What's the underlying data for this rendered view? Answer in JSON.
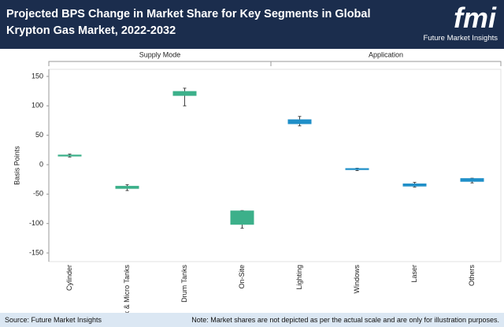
{
  "header": {
    "title": "Projected BPS Change in Market Share for Key Segments in Global Krypton Gas Market, 2022-2032",
    "logo": "fmi",
    "logo_caption": "Future Market Insights"
  },
  "chart_data": {
    "type": "box",
    "y_label": "Basis Points",
    "ylim": [
      -160,
      160
    ],
    "yticks": [
      150,
      100,
      50,
      0,
      -50,
      -100,
      -150
    ],
    "series": [
      {
        "name": "Supply Mode",
        "color": "#3cb08a",
        "categories": [
          "Cylinder",
          "Bulk & Micro Tanks",
          "Drum Tanks",
          "On-Site"
        ],
        "low": [
          13,
          -44,
          100,
          -108
        ],
        "q1": [
          14,
          -41,
          117,
          -102
        ],
        "q3": [
          17,
          -36,
          125,
          -78
        ],
        "high": [
          18,
          -34,
          130,
          -78
        ]
      },
      {
        "name": "Application",
        "color": "#1f8fc8",
        "categories": [
          "Lighting",
          "Windows",
          "Laser",
          "Others"
        ],
        "low": [
          66,
          -10,
          -38,
          -31
        ],
        "q1": [
          69,
          -9,
          -37,
          -29
        ],
        "q3": [
          77,
          -6,
          -32,
          -23
        ],
        "high": [
          82,
          -6,
          -30,
          -23
        ]
      }
    ]
  },
  "footer": {
    "source": "Source: Future Market Insights",
    "note": "Note: Market shares are not depicted as per the actual scale and are only for illustration purposes."
  }
}
